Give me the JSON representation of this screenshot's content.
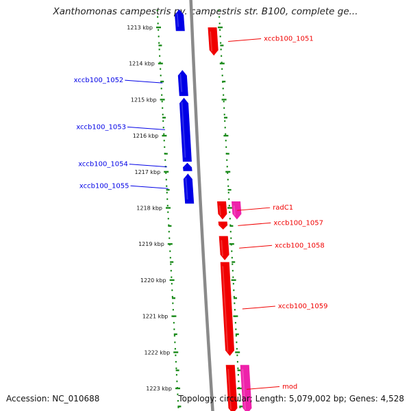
{
  "header": {
    "title": "Xanthomonas campestris pv. campestris str. B100, complete ge..."
  },
  "footer": {
    "accession": "Accession: NC_010688",
    "topology": "Topology: circular; Length: 5,079,002 bp; Genes: 4,528"
  },
  "colors": {
    "reverse_gene": "#0000e6",
    "forward_gene": "#f00000",
    "rna_gene": "#ee22aa",
    "ruler": "#1a8a1a",
    "backbone": "#8a8a8a"
  },
  "ruler": {
    "unit": "kbp",
    "ticks": [
      {
        "kbp": 1213,
        "label": "1213 kbp"
      },
      {
        "kbp": 1214,
        "label": "1214 kbp"
      },
      {
        "kbp": 1215,
        "label": "1215 kbp"
      },
      {
        "kbp": 1216,
        "label": "1216 kbp"
      },
      {
        "kbp": 1217,
        "label": "1217 kbp"
      },
      {
        "kbp": 1218,
        "label": "1218 kbp"
      },
      {
        "kbp": 1219,
        "label": "1219 kbp"
      },
      {
        "kbp": 1220,
        "label": "1220 kbp"
      },
      {
        "kbp": 1221,
        "label": "1221 kbp"
      },
      {
        "kbp": 1222,
        "label": "1222 kbp"
      },
      {
        "kbp": 1223,
        "label": "1223 kbp"
      }
    ]
  },
  "genes": [
    {
      "label": "",
      "strand": "reverse",
      "type": "cds",
      "start_kbp": 1212.5,
      "end_kbp": 1213.1
    },
    {
      "label": "xccb100_1051",
      "strand": "forward",
      "type": "cds",
      "start_kbp": 1213.0,
      "end_kbp": 1213.78
    },
    {
      "label": "xccb100_1052",
      "strand": "reverse",
      "type": "cds",
      "start_kbp": 1214.18,
      "end_kbp": 1214.9
    },
    {
      "label": "xccb100_1053",
      "strand": "reverse",
      "type": "cds",
      "start_kbp": 1214.95,
      "end_kbp": 1216.72
    },
    {
      "label": "xccb100_1054",
      "strand": "reverse",
      "type": "cds",
      "start_kbp": 1216.75,
      "end_kbp": 1216.98
    },
    {
      "label": "xccb100_1055",
      "strand": "reverse",
      "type": "cds",
      "start_kbp": 1217.05,
      "end_kbp": 1217.88
    },
    {
      "label": "radC1",
      "strand": "forward",
      "type": "cds",
      "start_kbp": 1217.82,
      "end_kbp": 1218.32
    },
    {
      "label": "",
      "strand": "forward",
      "type": "rna",
      "start_kbp": 1217.82,
      "end_kbp": 1218.32
    },
    {
      "label": "xccb100_1057",
      "strand": "forward",
      "type": "cds",
      "start_kbp": 1218.38,
      "end_kbp": 1218.6
    },
    {
      "label": "xccb100_1058",
      "strand": "forward",
      "type": "cds",
      "start_kbp": 1218.78,
      "end_kbp": 1219.45
    },
    {
      "label": "xccb100_1059",
      "strand": "forward",
      "type": "cds",
      "start_kbp": 1219.5,
      "end_kbp": 1222.1
    },
    {
      "label": "",
      "strand": "forward",
      "type": "cds",
      "start_kbp": 1222.35,
      "end_kbp": 1223.7
    },
    {
      "label": "mod",
      "strand": "forward",
      "type": "rna",
      "start_kbp": 1222.35,
      "end_kbp": 1223.7
    }
  ]
}
